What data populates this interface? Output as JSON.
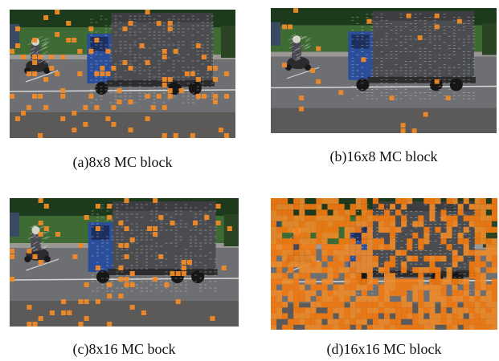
{
  "panels": [
    {
      "id": "a",
      "caption": "(a)8x8 MC block",
      "highlight_color": "#f08a28",
      "block_coverage": "sparse"
    },
    {
      "id": "b",
      "caption": "(b)16x8 MC block",
      "highlight_color": "#f08a28",
      "block_coverage": "very-sparse"
    },
    {
      "id": "c",
      "caption": "(c)8x16 MC bock",
      "highlight_color": "#f08a28",
      "block_coverage": "sparse"
    },
    {
      "id": "d",
      "caption": "(d)16x16 MC block",
      "highlight_color": "#f08a28",
      "block_coverage": "dense"
    }
  ],
  "colors": {
    "road": "#6d6f72",
    "grass": "#3d6b33",
    "hedge": "#1e3a1c",
    "truck_blue": "#2b4e9a",
    "truck_cargo": "#4a4c4f",
    "curb": "#9a9794",
    "orange": "#f08a28",
    "orange_dense": "#f47a10"
  }
}
